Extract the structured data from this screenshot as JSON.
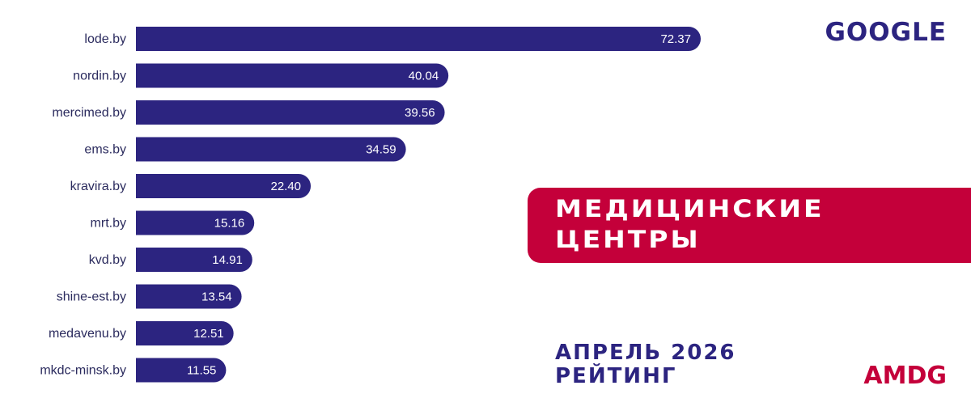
{
  "header": {
    "engine": "GOOGLE"
  },
  "banner": {
    "line1": "МЕДИЦИНСКИЕ",
    "line2": "ЦЕНТРЫ"
  },
  "period": {
    "line1": "АПРЕЛЬ 2026",
    "line2": "РЕЙТИНГ"
  },
  "brand": {
    "logo": "AMDG"
  },
  "colors": {
    "bar": "#2c2480",
    "accent": "#c4003a",
    "label": "#2b2b5e"
  },
  "chart_data": {
    "type": "bar",
    "orientation": "horizontal",
    "categories": [
      "lode.by",
      "nordin.by",
      "mercimed.by",
      "ems.by",
      "kravira.by",
      "mrt.by",
      "kvd.by",
      "shine-est.by",
      "medavenu.by",
      "mkdc-minsk.by"
    ],
    "values": [
      72.37,
      40.04,
      39.56,
      34.59,
      22.4,
      15.16,
      14.91,
      13.54,
      12.51,
      11.55
    ],
    "value_labels": [
      "72.37",
      "40.04",
      "39.56",
      "34.59",
      "22.40",
      "15.16",
      "14.91",
      "13.54",
      "12.51",
      "11.55"
    ],
    "xlim": [
      0,
      72.37
    ],
    "grid": false
  }
}
